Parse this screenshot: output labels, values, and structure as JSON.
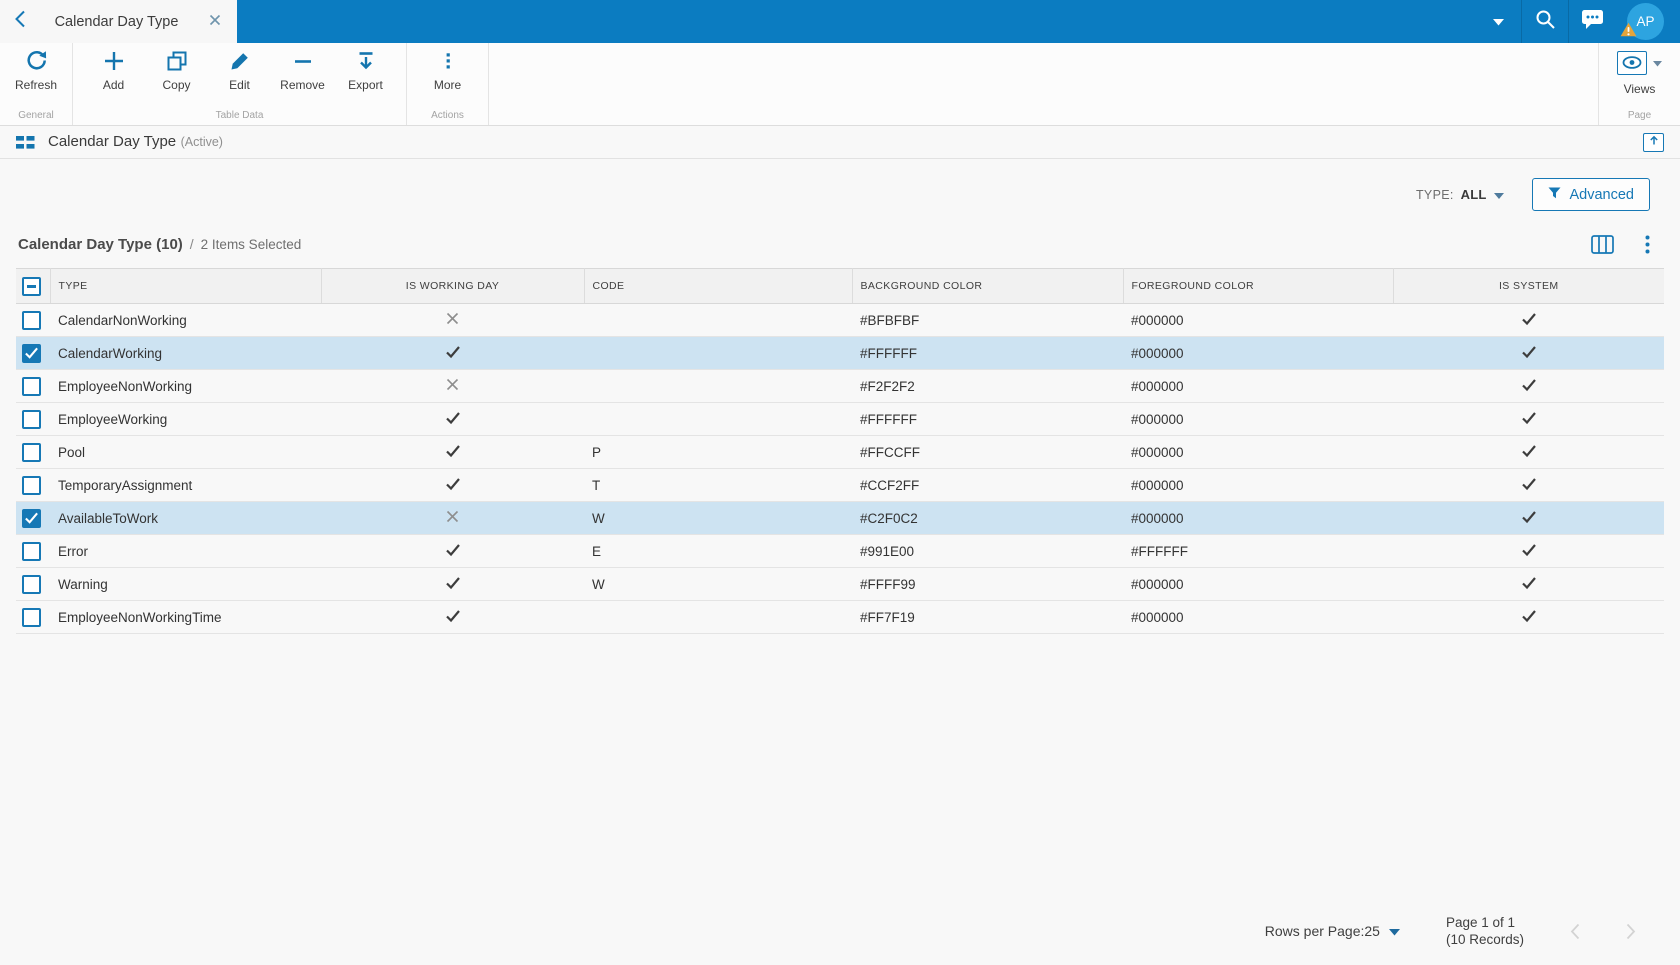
{
  "topbar": {
    "tab_title": "Calendar Day Type",
    "avatar_initials": "AP"
  },
  "ribbon": {
    "groups": [
      {
        "label": "General",
        "buttons": [
          {
            "label": "Refresh",
            "icon": "refresh-icon"
          }
        ]
      },
      {
        "label": "Table Data",
        "buttons": [
          {
            "label": "Add",
            "icon": "plus-icon"
          },
          {
            "label": "Copy",
            "icon": "copy-icon"
          },
          {
            "label": "Edit",
            "icon": "pencil-icon"
          },
          {
            "label": "Remove",
            "icon": "minus-icon"
          },
          {
            "label": "Export",
            "icon": "export-icon"
          }
        ]
      },
      {
        "label": "Actions",
        "buttons": [
          {
            "label": "More",
            "icon": "ellipsis-icon"
          }
        ]
      },
      {
        "label": "Page",
        "buttons": [
          {
            "label": "Views",
            "icon": "eye-icon"
          }
        ]
      }
    ]
  },
  "view_header": {
    "title": "Calendar Day Type",
    "status": "(Active)"
  },
  "filter_bar": {
    "type_label": "TYPE:",
    "type_value": "ALL",
    "advanced_label": "Advanced"
  },
  "list": {
    "title": "Calendar Day Type (10)",
    "divider": "/",
    "selection_summary": "2 Items Selected",
    "columns": [
      "TYPE",
      "IS WORKING DAY",
      "CODE",
      "BACKGROUND COLOR",
      "FOREGROUND COLOR",
      "IS SYSTEM"
    ],
    "rows": [
      {
        "type": "CalendarNonWorking",
        "is_working_day": false,
        "code": "",
        "background_color": "#BFBFBF",
        "foreground_color": "#000000",
        "is_system": true,
        "selected": false
      },
      {
        "type": "CalendarWorking",
        "is_working_day": true,
        "code": "",
        "background_color": "#FFFFFF",
        "foreground_color": "#000000",
        "is_system": true,
        "selected": true
      },
      {
        "type": "EmployeeNonWorking",
        "is_working_day": false,
        "code": "",
        "background_color": "#F2F2F2",
        "foreground_color": "#000000",
        "is_system": true,
        "selected": false
      },
      {
        "type": "EmployeeWorking",
        "is_working_day": true,
        "code": "",
        "background_color": "#FFFFFF",
        "foreground_color": "#000000",
        "is_system": true,
        "selected": false
      },
      {
        "type": "Pool",
        "is_working_day": true,
        "code": "P",
        "background_color": "#FFCCFF",
        "foreground_color": "#000000",
        "is_system": true,
        "selected": false
      },
      {
        "type": "TemporaryAssignment",
        "is_working_day": true,
        "code": "T",
        "background_color": "#CCF2FF",
        "foreground_color": "#000000",
        "is_system": true,
        "selected": false
      },
      {
        "type": "AvailableToWork",
        "is_working_day": false,
        "code": "W",
        "background_color": "#C2F0C2",
        "foreground_color": "#000000",
        "is_system": true,
        "selected": true
      },
      {
        "type": "Error",
        "is_working_day": true,
        "code": "E",
        "background_color": "#991E00",
        "foreground_color": "#FFFFFF",
        "is_system": true,
        "selected": false
      },
      {
        "type": "Warning",
        "is_working_day": true,
        "code": "W",
        "background_color": "#FFFF99",
        "foreground_color": "#000000",
        "is_system": true,
        "selected": false
      },
      {
        "type": "EmployeeNonWorkingTime",
        "is_working_day": true,
        "code": "",
        "background_color": "#FF7F19",
        "foreground_color": "#000000",
        "is_system": true,
        "selected": false
      }
    ]
  },
  "pagination": {
    "rows_per_page_label": "Rows per Page:",
    "rows_per_page_value": "25",
    "page_label": "Page 1 of 1",
    "records_label": "(10 Records)"
  },
  "colors": {
    "topbar": "#0b7cc1",
    "accent": "#1678b5",
    "icon": "#1475ae",
    "selected-row": "#cde3f2",
    "avatar": "#2da4e0",
    "warning": "#e2a43c",
    "check": "#3d3d3d",
    "cross": "#8e8e8e",
    "header-bg": "#f1f1f1",
    "page-bg": "#f8f8f8"
  }
}
